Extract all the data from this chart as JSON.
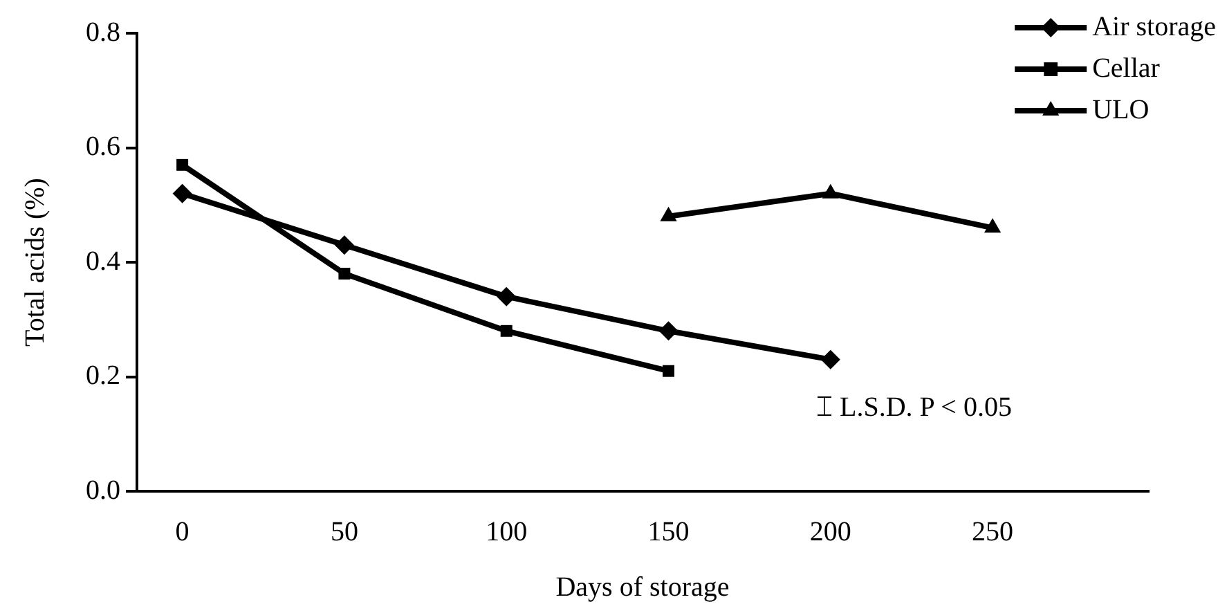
{
  "chart_data": {
    "type": "line",
    "xlabel": "Days of storage",
    "ylabel": "Total acids (%)",
    "xlim": [
      -14,
      298
    ],
    "xticks": [
      0,
      50,
      100,
      150,
      200,
      250
    ],
    "ylim": [
      0,
      0.8
    ],
    "yticks": [
      {
        "value": 0,
        "label": "0.0"
      },
      0.2,
      0.4,
      0.6,
      0.8
    ],
    "series": [
      {
        "name": "Air storage",
        "color": "#000000",
        "marker": "diamond",
        "x": [
          0,
          50,
          100,
          150,
          200
        ],
        "values": [
          0.52,
          0.43,
          0.34,
          0.28,
          0.23
        ]
      },
      {
        "name": "Cellar",
        "color": "#000000",
        "marker": "square",
        "x": [
          0,
          50,
          100,
          150
        ],
        "values": [
          0.57,
          0.38,
          0.28,
          0.21
        ]
      },
      {
        "name": "ULO",
        "color": "#000000",
        "marker": "triangle",
        "x": [
          150,
          200,
          250
        ],
        "values": [
          0.48,
          0.52,
          0.46
        ]
      }
    ],
    "annotations": [
      "⌶ L.S.D. P < 0.05"
    ],
    "legend": "top right",
    "grid": false,
    "line_style": "solid"
  }
}
